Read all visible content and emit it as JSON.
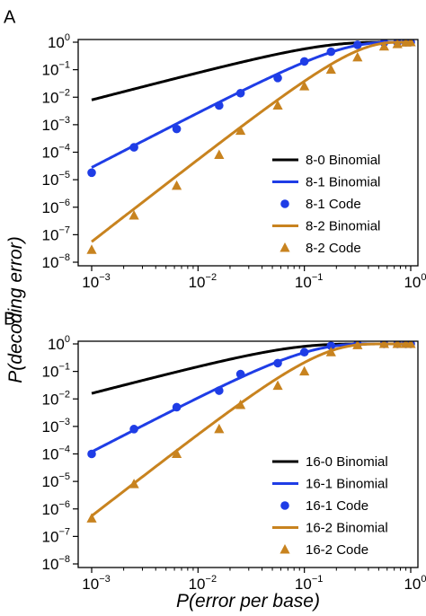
{
  "figure": {
    "ylabel": "P(decoding error)",
    "xlabel": "P(error per base)",
    "colors": {
      "black": "#000000",
      "blue": "#1f3de6",
      "orange": "#c8831f"
    }
  },
  "chart_data": [
    {
      "panel": "A",
      "type": "line",
      "xscale": "log",
      "yscale": "log",
      "xlim": [
        0.001,
        1
      ],
      "ylim": [
        1e-08,
        1
      ],
      "x_ticks": [
        {
          "base": "10",
          "exp": "−3"
        },
        {
          "base": "10",
          "exp": "−2"
        },
        {
          "base": "10",
          "exp": "−1"
        },
        {
          "base": "10",
          "exp": "0"
        }
      ],
      "y_ticks": [
        {
          "base": "10",
          "exp": "−8"
        },
        {
          "base": "10",
          "exp": "−7"
        },
        {
          "base": "10",
          "exp": "−6"
        },
        {
          "base": "10",
          "exp": "−5"
        },
        {
          "base": "10",
          "exp": "−4"
        },
        {
          "base": "10",
          "exp": "−3"
        },
        {
          "base": "10",
          "exp": "−2"
        },
        {
          "base": "10",
          "exp": "−1"
        },
        {
          "base": "10",
          "exp": "0"
        }
      ],
      "legend_position": "lower-right",
      "series": [
        {
          "name": "8-0 Binomial",
          "kind": "line",
          "color": "#000000",
          "formula": "binomial",
          "n": 8,
          "k": 0
        },
        {
          "name": "8-1 Binomial",
          "kind": "line",
          "color": "#1f3de6",
          "formula": "binomial",
          "n": 8,
          "k": 1
        },
        {
          "name": "8-1 Code",
          "kind": "points",
          "marker": "circle",
          "color": "#1f3de6",
          "x": [
            0.001,
            0.0025,
            0.0063,
            0.0158,
            0.0251,
            0.0562,
            0.1,
            0.178,
            0.316,
            0.562,
            0.75,
            0.9,
            1.0
          ],
          "y": [
            1.8e-05,
            0.00015,
            0.0007,
            0.005,
            0.014,
            0.05,
            0.2,
            0.45,
            0.8,
            0.97,
            0.99,
            1.0,
            1.0
          ]
        },
        {
          "name": "8-2 Binomial",
          "kind": "line",
          "color": "#c8831f",
          "formula": "binomial",
          "n": 8,
          "k": 2
        },
        {
          "name": "8-2 Code",
          "kind": "points",
          "marker": "triangle",
          "color": "#c8831f",
          "x": [
            0.001,
            0.0025,
            0.0063,
            0.0158,
            0.0251,
            0.0562,
            0.1,
            0.178,
            0.316,
            0.562,
            0.75,
            0.9,
            1.0
          ],
          "y": [
            2.8e-08,
            5e-07,
            6e-06,
            8e-05,
            0.0006,
            0.005,
            0.025,
            0.1,
            0.28,
            0.7,
            0.85,
            0.97,
            1.0
          ]
        }
      ]
    },
    {
      "panel": "B",
      "type": "line",
      "xscale": "log",
      "yscale": "log",
      "xlim": [
        0.001,
        1
      ],
      "ylim": [
        1e-08,
        1
      ],
      "x_ticks": [
        {
          "base": "10",
          "exp": "−3"
        },
        {
          "base": "10",
          "exp": "−2"
        },
        {
          "base": "10",
          "exp": "−1"
        },
        {
          "base": "10",
          "exp": "0"
        }
      ],
      "y_ticks": [
        {
          "base": "10",
          "exp": "−8"
        },
        {
          "base": "10",
          "exp": "−7"
        },
        {
          "base": "10",
          "exp": "−6"
        },
        {
          "base": "10",
          "exp": "−5"
        },
        {
          "base": "10",
          "exp": "−4"
        },
        {
          "base": "10",
          "exp": "−3"
        },
        {
          "base": "10",
          "exp": "−2"
        },
        {
          "base": "10",
          "exp": "−1"
        },
        {
          "base": "10",
          "exp": "0"
        }
      ],
      "legend_position": "lower-right",
      "series": [
        {
          "name": "16-0 Binomial",
          "kind": "line",
          "color": "#000000",
          "formula": "binomial",
          "n": 16,
          "k": 0
        },
        {
          "name": "16-1 Binomial",
          "kind": "line",
          "color": "#1f3de6",
          "formula": "binomial",
          "n": 16,
          "k": 1
        },
        {
          "name": "16-1 Code",
          "kind": "points",
          "marker": "circle",
          "color": "#1f3de6",
          "x": [
            0.001,
            0.0025,
            0.0063,
            0.0158,
            0.0251,
            0.0562,
            0.1,
            0.178,
            0.316,
            0.562,
            0.75,
            0.9,
            1.0
          ],
          "y": [
            0.0001,
            0.0008,
            0.005,
            0.02,
            0.08,
            0.2,
            0.5,
            0.85,
            0.98,
            1.0,
            1.0,
            1.0,
            1.0
          ]
        },
        {
          "name": "16-2 Binomial",
          "kind": "line",
          "color": "#c8831f",
          "formula": "binomial",
          "n": 16,
          "k": 2
        },
        {
          "name": "16-2 Code",
          "kind": "points",
          "marker": "triangle",
          "color": "#c8831f",
          "x": [
            0.001,
            0.0025,
            0.0063,
            0.0158,
            0.0251,
            0.0562,
            0.1,
            0.178,
            0.316,
            0.562,
            0.75,
            0.9,
            1.0
          ],
          "y": [
            4.5e-07,
            8e-06,
            0.0001,
            0.0008,
            0.006,
            0.03,
            0.1,
            0.5,
            0.9,
            1.0,
            1.0,
            1.0,
            1.0
          ]
        }
      ]
    }
  ]
}
